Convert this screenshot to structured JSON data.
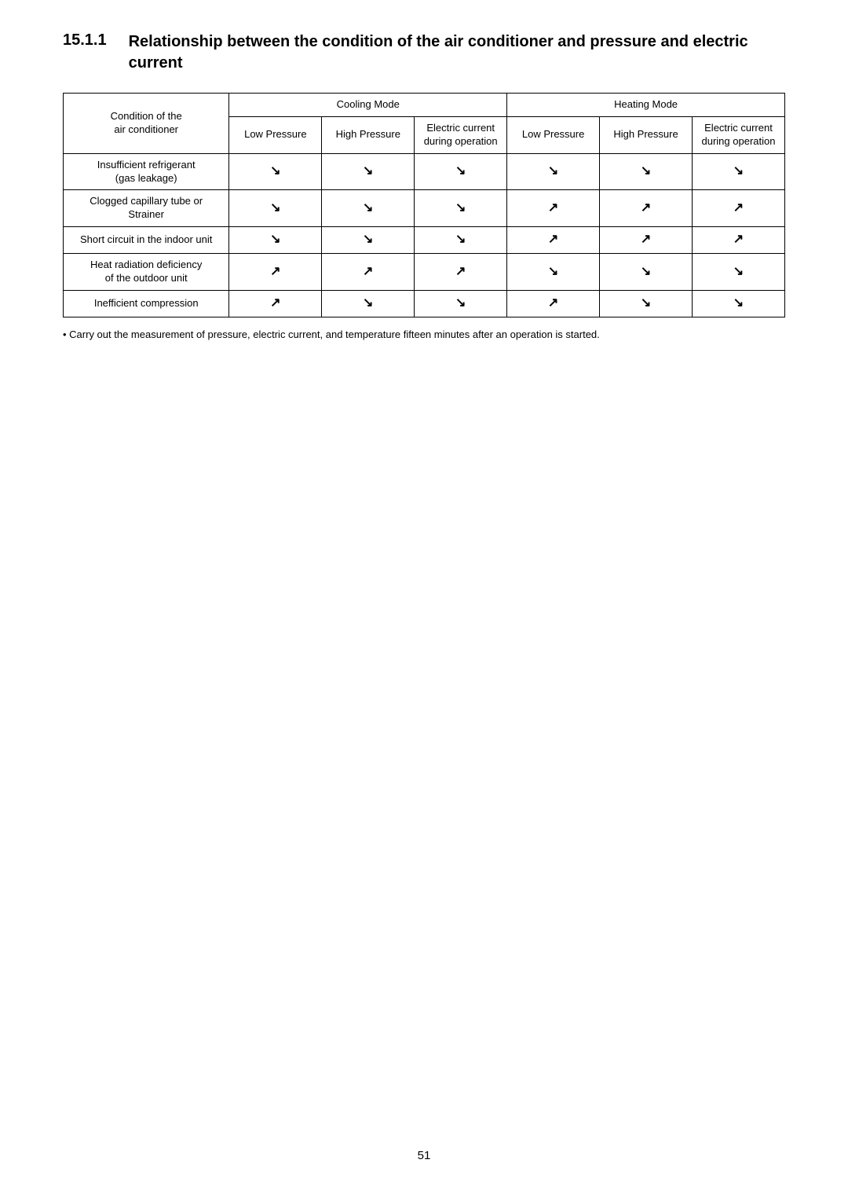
{
  "heading": {
    "number": "15.1.1",
    "title": "Relationship between the condition of the air conditioner and pressure and electric current"
  },
  "arrows": {
    "down": "↘",
    "up": "↗"
  },
  "table": {
    "condition_header": "Condition of the\nair conditioner",
    "mode_cooling": "Cooling Mode",
    "mode_heating": "Heating Mode",
    "col_low_pressure": "Low Pressure",
    "col_high_pressure": "High Pressure",
    "col_electric_current": "Electric current\nduring operation",
    "rows": [
      {
        "condition": "Insufficient refrigerant\n(gas leakage)",
        "cooling": [
          "down",
          "down",
          "down"
        ],
        "heating": [
          "down",
          "down",
          "down"
        ]
      },
      {
        "condition": "Clogged capillary tube or\nStrainer",
        "cooling": [
          "down",
          "down",
          "down"
        ],
        "heating": [
          "up",
          "up",
          "up"
        ]
      },
      {
        "condition": "Short circuit in the indoor unit",
        "cooling": [
          "down",
          "down",
          "down"
        ],
        "heating": [
          "up",
          "up",
          "up"
        ]
      },
      {
        "condition": "Heat radiation deficiency\nof the outdoor unit",
        "cooling": [
          "up",
          "up",
          "up"
        ],
        "heating": [
          "down",
          "down",
          "down"
        ]
      },
      {
        "condition": "Inefficient compression",
        "cooling": [
          "up",
          "down",
          "down"
        ],
        "heating": [
          "up",
          "down",
          "down"
        ]
      }
    ]
  },
  "note": "•  Carry out the measurement of pressure, electric current, and temperature fifteen minutes after an operation is started.",
  "page_number": "51"
}
